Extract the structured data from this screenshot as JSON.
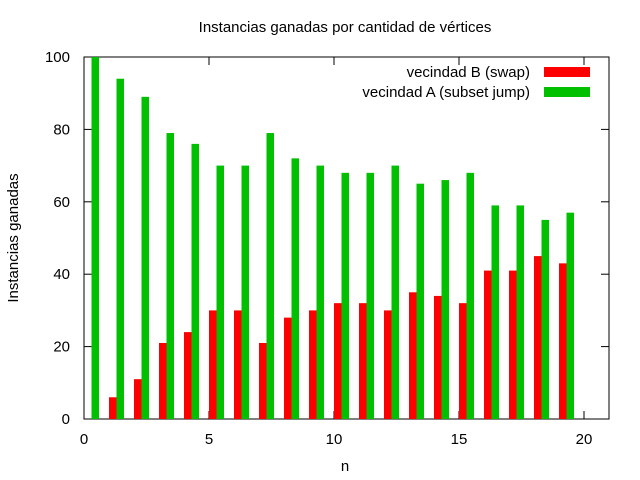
{
  "chart_data": {
    "type": "bar",
    "title": "Instancias ganadas por cantidad de vértices",
    "xlabel": "n",
    "ylabel": "Instancias ganadas",
    "xlim": [
      0,
      21
    ],
    "ylim": [
      0,
      100
    ],
    "xticks": [
      0,
      5,
      10,
      15,
      20
    ],
    "yticks": [
      0,
      20,
      40,
      60,
      80,
      100
    ],
    "grid": false,
    "legend_position": "top-right",
    "x": [
      0,
      1,
      2,
      3,
      4,
      5,
      6,
      7,
      8,
      9,
      10,
      11,
      12,
      13,
      14,
      15,
      16,
      17,
      18,
      19
    ],
    "series": [
      {
        "name": "vecindad B (swap)",
        "color": "#ff0000",
        "values": [
          0,
          6,
          11,
          21,
          24,
          30,
          30,
          21,
          28,
          30,
          32,
          32,
          30,
          35,
          34,
          32,
          41,
          41,
          45,
          43
        ]
      },
      {
        "name": "vecindad A (subset jump)",
        "color": "#00c000",
        "values": [
          100,
          94,
          89,
          79,
          76,
          70,
          70,
          79,
          72,
          70,
          68,
          68,
          70,
          65,
          66,
          68,
          59,
          59,
          55,
          57
        ]
      }
    ]
  }
}
